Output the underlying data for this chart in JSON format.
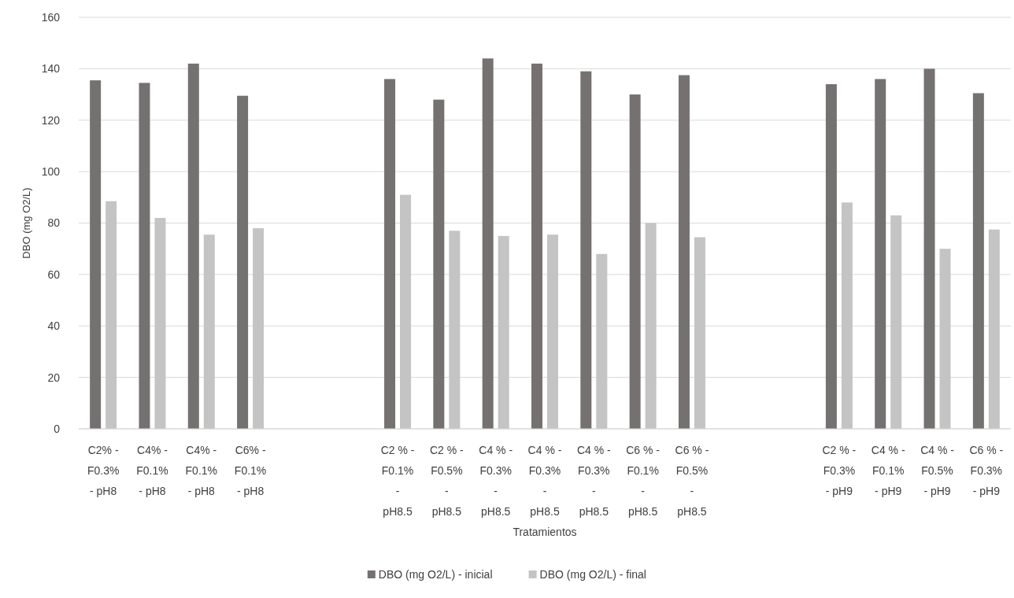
{
  "chart_data": {
    "type": "bar",
    "xlabel": "Tratamientos",
    "ylabel": "DBO (mg O2/L)",
    "categories": [
      "C2% - F0.3% - pH8",
      "C4% - F0.1% - pH8",
      "C4% - F0.1% - pH8",
      "C6% - F0.1% - pH8",
      null,
      null,
      "C2 % - F0.1% - pH8.5",
      "C2 % - F0.5% - pH8.5",
      "C4 % - F0.3% - pH8.5",
      "C4 % - F0.3% - pH8.5",
      "C4 % - F0.3% - pH8.5",
      "C6 % - F0.1% - pH8.5",
      "C6 % - F0.5% - pH8.5",
      null,
      null,
      "C2 % - F0.3% - pH9",
      "C4 % - F0.1% - pH9",
      "C4 % - F0.5% - pH9",
      "C6 % - F0.3% - pH9"
    ],
    "series": [
      {
        "name": "DBO (mg O2/L) - inicial",
        "color": "#767171",
        "values": [
          135.5,
          134.5,
          142,
          129.5,
          null,
          null,
          136,
          128,
          144,
          142,
          139,
          130,
          137.5,
          null,
          null,
          134,
          136,
          140,
          130.5
        ]
      },
      {
        "name": "DBO (mg O2/L) - final",
        "color": "#c4c4c4",
        "values": [
          88.5,
          82,
          75.5,
          78,
          null,
          null,
          91,
          77,
          75,
          75.5,
          68,
          80,
          74.5,
          null,
          null,
          88,
          83,
          70,
          77.5
        ]
      }
    ],
    "ylim": [
      0,
      160
    ],
    "yticks": [
      0,
      20,
      40,
      60,
      80,
      100,
      120,
      140,
      160
    ],
    "grid": "y",
    "legend": "bottom"
  }
}
